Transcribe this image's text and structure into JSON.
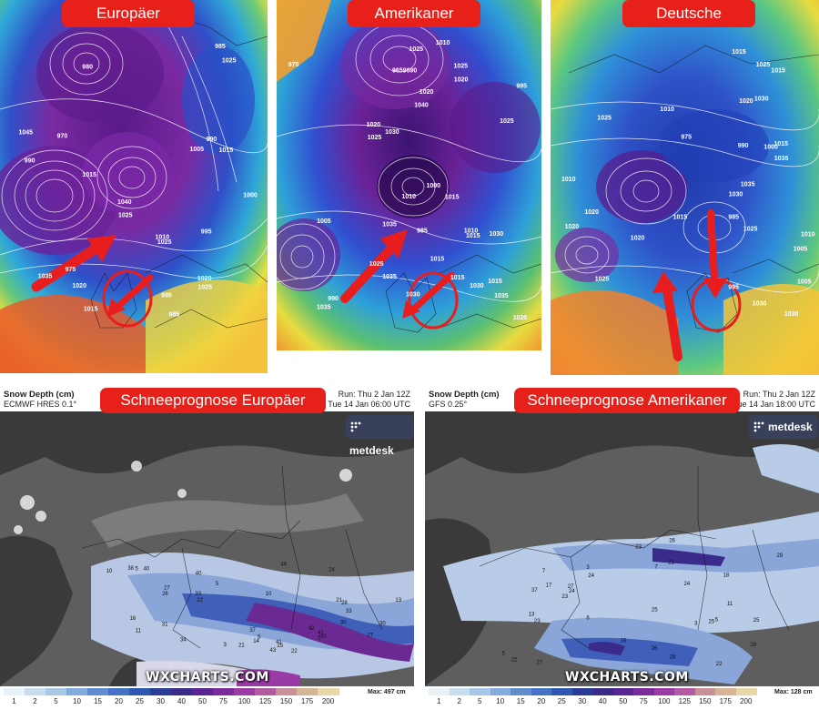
{
  "panels": {
    "europe": {
      "label": "Europäer"
    },
    "america": {
      "label": "Amerikaner"
    },
    "germany": {
      "label": "Deutsche"
    }
  },
  "snow_left": {
    "label": "Schneeprognose Europäer",
    "title": "Snow Depth (cm)",
    "model": "ECMWF HRES 0.1°",
    "run": "Run: Thu 2 Jan 12Z",
    "valid": "Valid: Tue 14 Jan 06:00 UTC",
    "max": "Max: 497 cm"
  },
  "snow_right": {
    "label": "Schneeprognose Amerikaner",
    "title": "Snow Depth (cm)",
    "model": "GFS 0.25°",
    "run": "Run: Thu 2 Jan 12Z",
    "valid": "Valid: Tue 14 Jan 18:00 UTC",
    "max": "Max: 128 cm"
  },
  "branding": {
    "metdesk": "metdesk",
    "wxcharts": "WXCHARTS.COM"
  },
  "colorbar": {
    "ticks": [
      "1",
      "2",
      "5",
      "10",
      "15",
      "20",
      "25",
      "30",
      "40",
      "50",
      "75",
      "100",
      "125",
      "150",
      "175",
      "200"
    ],
    "colors": [
      "#e8f0f8",
      "#c8dcf0",
      "#a8c8ea",
      "#82acdc",
      "#5e8ed0",
      "#4472c4",
      "#2f56b0",
      "#283c98",
      "#3a2a8a",
      "#5a2592",
      "#7a2c9e",
      "#9c3aa6",
      "#b45aa0",
      "#c8909a",
      "#d8b496",
      "#e8d8a8"
    ]
  },
  "isobars": {
    "europe": [
      "985",
      "980",
      "975",
      "970",
      "990",
      "995",
      "1000",
      "1015",
      "1025",
      "1020",
      "1035",
      "1045",
      "1040",
      "1010",
      "1005",
      "985",
      "990",
      "1025",
      "995",
      "1015",
      "1020",
      "1025",
      "1015",
      "1025"
    ],
    "america": [
      "1035",
      "1030",
      "1000",
      "985",
      "9659690",
      "1010",
      "1015",
      "1025",
      "1030",
      "1025",
      "1020",
      "1025",
      "1035",
      "1025",
      "1015",
      "1020",
      "1010",
      "1005",
      "1010",
      "995",
      "975",
      "990",
      "1030",
      "1015",
      "1015",
      "1020",
      "1030",
      "1040",
      "1025",
      "1015",
      "1035",
      "1035",
      "1020"
    ],
    "germany": [
      "985",
      "1010",
      "1000",
      "1005",
      "995",
      "1030",
      "1015",
      "975",
      "1005",
      "1030",
      "1035",
      "1030",
      "1020",
      "1025",
      "1020",
      "1030",
      "1015",
      "1020",
      "1025",
      "1010",
      "1015",
      "1010",
      "990",
      "1015",
      "1035",
      "1025",
      "1025",
      "1020"
    ]
  },
  "snow_values": {
    "left": [
      "3",
      "5",
      "10",
      "10",
      "13",
      "11",
      "14",
      "16",
      "21",
      "27",
      "31",
      "27",
      "21",
      "22",
      "24",
      "25",
      "47",
      "41",
      "30",
      "28",
      "40",
      "33",
      "26",
      "22",
      "41",
      "34",
      "46",
      "43",
      "40",
      "33",
      "38",
      "42",
      "30",
      "37",
      "5",
      "5",
      "5"
    ],
    "right": [
      "7",
      "3",
      "6",
      "13",
      "17",
      "16",
      "18",
      "28",
      "26",
      "25",
      "37",
      "29",
      "22",
      "24",
      "22",
      "25",
      "21",
      "23",
      "27",
      "23",
      "25",
      "24",
      "27",
      "26",
      "28",
      "23",
      "24",
      "3",
      "5",
      "5",
      "11",
      "7"
    ]
  }
}
